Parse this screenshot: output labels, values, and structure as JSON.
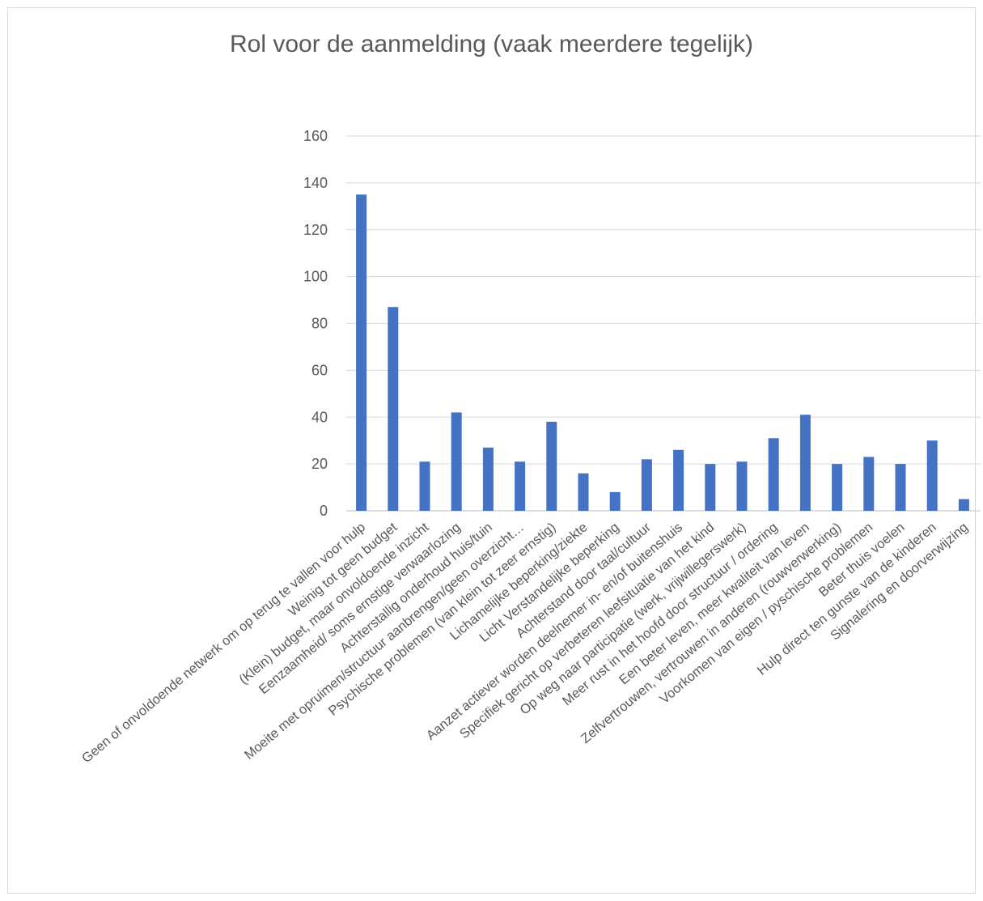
{
  "chart_data": {
    "type": "bar",
    "title": "Rol voor de aanmelding (vaak meerdere tegelijk)",
    "xlabel": "",
    "ylabel": "",
    "ylim": [
      0,
      160
    ],
    "yticks": [
      0,
      20,
      40,
      60,
      80,
      100,
      120,
      140,
      160
    ],
    "grid": true,
    "legend": "none",
    "bar_color": "#4472c4",
    "categories": [
      "Geen of onvoldoende netwerk om op terug te vallen voor hulp",
      "Weinig tot geen budget",
      "(Klein) budget, maar onvoldoende inzicht",
      "Eenzaamheid/ soms ernstige verwaarlozing",
      "Achterstallig onderhoud huis/tuin",
      "Moeite met opruimen/structuur aanbrengen/geen overzicht…",
      "Psychische problemen (van klein tot zeer ernstig)",
      "Lichamelijke beperking/ziekte",
      "Licht Verstandelijke beperking",
      "Achterstand door taal/cultuur",
      "Aanzet actiever worden deelnemer in- en/of buitenshuis",
      "Specifiek gericht op verbeteren leefsituatie van het kind",
      "Op weg naar participatie (werk, vrijwillegerswerk)",
      "Meer rust in het hoofd door structuur / ordering",
      "Een beter leven, meer kwaliteit van leven",
      "Zelfvertrouwen, vertrouwen in anderen (rouwverwerking)",
      "Voorkomen van eigen / pyschische problemen",
      "Beter thuis voelen",
      "Hulp direct ten gunste van de kinderen",
      "Signalering en doorverwijzing"
    ],
    "values": [
      135,
      87,
      21,
      42,
      27,
      21,
      38,
      16,
      8,
      22,
      26,
      20,
      21,
      31,
      41,
      20,
      23,
      20,
      30,
      5
    ]
  }
}
